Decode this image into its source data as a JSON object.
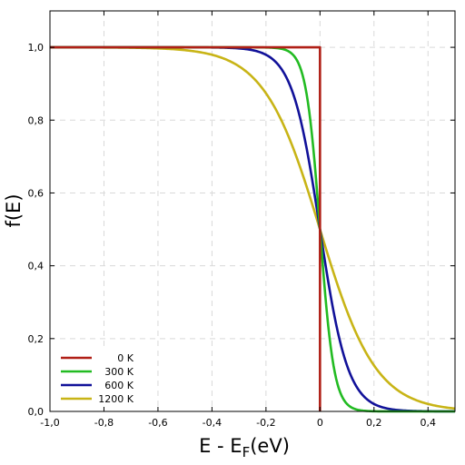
{
  "chart_data": {
    "type": "line",
    "title": "",
    "xlabel": "E - E",
    "xlabel_subscript": "F",
    "xlabel_suffix": "(eV)",
    "ylabel": "f(E)",
    "xlim": [
      -1.0,
      0.5
    ],
    "ylim": [
      0.0,
      1.1
    ],
    "grid": true,
    "legend_position": "bottom-left",
    "xticks": [
      -1.0,
      -0.8,
      -0.6,
      -0.4,
      -0.2,
      0,
      0.2,
      0.4
    ],
    "xtick_labels": [
      "-1,0",
      "-0,8",
      "-0,6",
      "-0,4",
      "-0,2",
      "0",
      "0,2",
      "0,4"
    ],
    "yticks": [
      0.0,
      0.2,
      0.4,
      0.6,
      0.8,
      1.0
    ],
    "ytick_labels": [
      "0,0",
      "0,2",
      "0,4",
      "0,6",
      "0,8",
      "1,0"
    ],
    "series": [
      {
        "name": "0 K",
        "color": "#b01f16",
        "temperature_K": 0,
        "x": [
          -1.0,
          0.0,
          0.0,
          0.0
        ],
        "y": [
          1.0,
          1.0,
          0.5,
          0.0
        ]
      },
      {
        "name": "300 K",
        "color": "#22bb22",
        "temperature_K": 300,
        "x": [
          -1.0,
          -0.2,
          -0.1,
          -0.05,
          0.0,
          0.05,
          0.1,
          0.2,
          0.5
        ],
        "y": [
          1.0,
          1.0,
          0.98,
          0.88,
          0.5,
          0.12,
          0.02,
          0.0,
          0.0
        ]
      },
      {
        "name": "600 K",
        "color": "#111199",
        "temperature_K": 600,
        "x": [
          -1.0,
          -0.3,
          -0.2,
          -0.1,
          0.0,
          0.1,
          0.2,
          0.3,
          0.5
        ],
        "y": [
          1.0,
          1.0,
          0.98,
          0.87,
          0.5,
          0.13,
          0.02,
          0.0,
          0.0
        ]
      },
      {
        "name": "1200 K",
        "color": "#c8b416",
        "temperature_K": 1200,
        "x": [
          -1.0,
          -0.6,
          -0.4,
          -0.2,
          -0.1,
          0.0,
          0.1,
          0.2,
          0.3,
          0.4,
          0.5
        ],
        "y": [
          1.0,
          0.995,
          0.98,
          0.87,
          0.73,
          0.5,
          0.27,
          0.13,
          0.05,
          0.02,
          0.01
        ]
      }
    ]
  }
}
